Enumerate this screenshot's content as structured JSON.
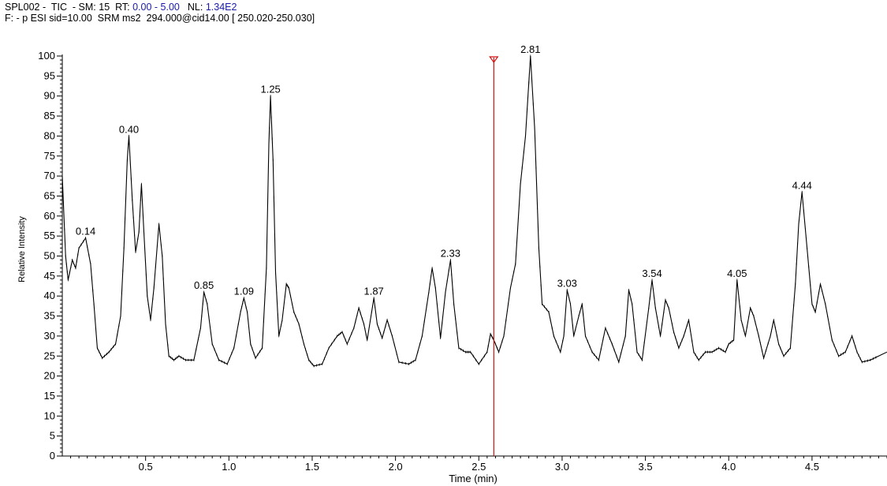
{
  "header": {
    "line1_prefix": "SPL002 -  TIC  - SM: 15  RT: ",
    "rt_range": "0.00 - 5.00",
    "nl_label": "NL: ",
    "nl_value": "1.34E2",
    "line2": "F: - p ESI sid=10.00  SRM ms2  294.000@cid14.00 [ 250.020-250.030]"
  },
  "colors": {
    "trace": "#000000",
    "marker": "#d01010",
    "header_value": "#1a1aa8"
  },
  "chart_data": {
    "type": "line",
    "xlabel": "Time (min)",
    "ylabel": "Relative Intensity",
    "xlim": [
      0.0,
      4.95
    ],
    "ylim": [
      0,
      100
    ],
    "x_ticks": [
      0.5,
      1.0,
      1.5,
      2.0,
      2.5,
      3.0,
      3.5,
      4.0,
      4.5
    ],
    "x_tick_labels": [
      "0.5",
      "1.0",
      "1.5",
      "2.0",
      "2.5",
      "3.0",
      "3.5",
      "4.0",
      "4.5"
    ],
    "y_ticks": [
      0,
      5,
      10,
      15,
      20,
      25,
      30,
      35,
      40,
      45,
      50,
      55,
      60,
      65,
      70,
      75,
      80,
      85,
      90,
      95,
      100
    ],
    "y_tick_labels": [
      "0",
      "5",
      "10",
      "15",
      "20",
      "25",
      "30",
      "35",
      "40",
      "45",
      "50",
      "55",
      "60",
      "65",
      "70",
      "75",
      "80",
      "85",
      "90",
      "95",
      "100"
    ],
    "marker_line_x": 2.59,
    "peak_labels": [
      {
        "x": 0.14,
        "y": 54.5,
        "label": "0.14"
      },
      {
        "x": 0.4,
        "y": 80,
        "label": "0.40"
      },
      {
        "x": 0.85,
        "y": 41,
        "label": "0.85"
      },
      {
        "x": 1.09,
        "y": 39.5,
        "label": "1.09"
      },
      {
        "x": 1.25,
        "y": 90,
        "label": "1.25"
      },
      {
        "x": 1.87,
        "y": 39.5,
        "label": "1.87"
      },
      {
        "x": 2.33,
        "y": 49,
        "label": "2.33"
      },
      {
        "x": 2.81,
        "y": 100,
        "label": "2.81"
      },
      {
        "x": 3.03,
        "y": 41.5,
        "label": "3.03"
      },
      {
        "x": 3.54,
        "y": 44,
        "label": "3.54"
      },
      {
        "x": 4.05,
        "y": 44,
        "label": "4.05"
      },
      {
        "x": 4.44,
        "y": 66,
        "label": "4.44"
      }
    ],
    "series": [
      {
        "points": [
          [
            0.0,
            70
          ],
          [
            0.02,
            50
          ],
          [
            0.035,
            44
          ],
          [
            0.06,
            49
          ],
          [
            0.08,
            47
          ],
          [
            0.1,
            52
          ],
          [
            0.14,
            54.5
          ],
          [
            0.17,
            48
          ],
          [
            0.19,
            38
          ],
          [
            0.21,
            27
          ],
          [
            0.24,
            24.5
          ],
          [
            0.28,
            26
          ],
          [
            0.32,
            28
          ],
          [
            0.35,
            35
          ],
          [
            0.37,
            52
          ],
          [
            0.39,
            74
          ],
          [
            0.4,
            80
          ],
          [
            0.42,
            64
          ],
          [
            0.44,
            51
          ],
          [
            0.46,
            56
          ],
          [
            0.475,
            68
          ],
          [
            0.49,
            56
          ],
          [
            0.51,
            40
          ],
          [
            0.53,
            34
          ],
          [
            0.55,
            42
          ],
          [
            0.58,
            58
          ],
          [
            0.6,
            50
          ],
          [
            0.62,
            33
          ],
          [
            0.64,
            25
          ],
          [
            0.67,
            24
          ],
          [
            0.7,
            25
          ],
          [
            0.74,
            24
          ],
          [
            0.79,
            24
          ],
          [
            0.83,
            32
          ],
          [
            0.85,
            41
          ],
          [
            0.87,
            38
          ],
          [
            0.9,
            28
          ],
          [
            0.94,
            24
          ],
          [
            0.99,
            23
          ],
          [
            1.03,
            27
          ],
          [
            1.07,
            36
          ],
          [
            1.09,
            39.5
          ],
          [
            1.11,
            36
          ],
          [
            1.13,
            28
          ],
          [
            1.16,
            24.5
          ],
          [
            1.2,
            27
          ],
          [
            1.225,
            47
          ],
          [
            1.24,
            78
          ],
          [
            1.25,
            90
          ],
          [
            1.265,
            74
          ],
          [
            1.28,
            46
          ],
          [
            1.3,
            30
          ],
          [
            1.32,
            34
          ],
          [
            1.345,
            43
          ],
          [
            1.36,
            42
          ],
          [
            1.39,
            36
          ],
          [
            1.42,
            33
          ],
          [
            1.45,
            28
          ],
          [
            1.48,
            24
          ],
          [
            1.51,
            22.5
          ],
          [
            1.56,
            23
          ],
          [
            1.6,
            27
          ],
          [
            1.65,
            30
          ],
          [
            1.68,
            31
          ],
          [
            1.71,
            28
          ],
          [
            1.75,
            32
          ],
          [
            1.78,
            37
          ],
          [
            1.81,
            33
          ],
          [
            1.83,
            29
          ],
          [
            1.87,
            39.5
          ],
          [
            1.89,
            33
          ],
          [
            1.92,
            29.5
          ],
          [
            1.95,
            34
          ],
          [
            1.98,
            30
          ],
          [
            2.02,
            23.5
          ],
          [
            2.08,
            23
          ],
          [
            2.12,
            24
          ],
          [
            2.16,
            30
          ],
          [
            2.2,
            41
          ],
          [
            2.22,
            47
          ],
          [
            2.24,
            42
          ],
          [
            2.27,
            29.5
          ],
          [
            2.3,
            41
          ],
          [
            2.33,
            49
          ],
          [
            2.35,
            38
          ],
          [
            2.38,
            27
          ],
          [
            2.42,
            26
          ],
          [
            2.45,
            26
          ],
          [
            2.5,
            23
          ],
          [
            2.55,
            26
          ],
          [
            2.57,
            30.5
          ],
          [
            2.59,
            29
          ],
          [
            2.62,
            26
          ],
          [
            2.65,
            30
          ],
          [
            2.69,
            42
          ],
          [
            2.72,
            48
          ],
          [
            2.75,
            68
          ],
          [
            2.78,
            80
          ],
          [
            2.81,
            100
          ],
          [
            2.835,
            82
          ],
          [
            2.86,
            52
          ],
          [
            2.88,
            38
          ],
          [
            2.92,
            36
          ],
          [
            2.95,
            30
          ],
          [
            2.99,
            26
          ],
          [
            3.01,
            30
          ],
          [
            3.03,
            41.5
          ],
          [
            3.05,
            38
          ],
          [
            3.07,
            30
          ],
          [
            3.1,
            35
          ],
          [
            3.12,
            38
          ],
          [
            3.14,
            30
          ],
          [
            3.18,
            26
          ],
          [
            3.22,
            24
          ],
          [
            3.26,
            32
          ],
          [
            3.3,
            28
          ],
          [
            3.34,
            23.5
          ],
          [
            3.38,
            30
          ],
          [
            3.4,
            41.5
          ],
          [
            3.42,
            38
          ],
          [
            3.45,
            26
          ],
          [
            3.48,
            24
          ],
          [
            3.52,
            37
          ],
          [
            3.54,
            44
          ],
          [
            3.56,
            37
          ],
          [
            3.59,
            30
          ],
          [
            3.62,
            39
          ],
          [
            3.64,
            37
          ],
          [
            3.67,
            31
          ],
          [
            3.7,
            27
          ],
          [
            3.73,
            30
          ],
          [
            3.76,
            34
          ],
          [
            3.79,
            26
          ],
          [
            3.82,
            24
          ],
          [
            3.86,
            26
          ],
          [
            3.9,
            26
          ],
          [
            3.94,
            27
          ],
          [
            3.98,
            26
          ],
          [
            4.0,
            28
          ],
          [
            4.03,
            29
          ],
          [
            4.05,
            44
          ],
          [
            4.075,
            34
          ],
          [
            4.1,
            30
          ],
          [
            4.13,
            37
          ],
          [
            4.15,
            35
          ],
          [
            4.18,
            30
          ],
          [
            4.21,
            24.5
          ],
          [
            4.25,
            30
          ],
          [
            4.27,
            34
          ],
          [
            4.3,
            28
          ],
          [
            4.33,
            25
          ],
          [
            4.37,
            27
          ],
          [
            4.4,
            43
          ],
          [
            4.42,
            58
          ],
          [
            4.44,
            66
          ],
          [
            4.47,
            52
          ],
          [
            4.5,
            38
          ],
          [
            4.52,
            36
          ],
          [
            4.55,
            43
          ],
          [
            4.58,
            38
          ],
          [
            4.62,
            29
          ],
          [
            4.66,
            25
          ],
          [
            4.7,
            26
          ],
          [
            4.74,
            30
          ],
          [
            4.77,
            26
          ],
          [
            4.8,
            23.5
          ],
          [
            4.85,
            24
          ],
          [
            4.9,
            25
          ],
          [
            4.95,
            26
          ]
        ]
      }
    ]
  }
}
